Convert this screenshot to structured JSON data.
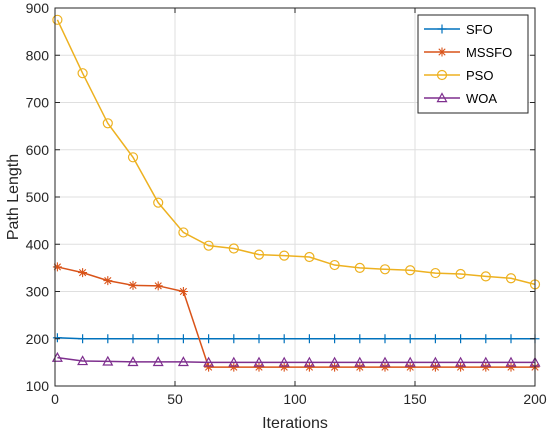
{
  "chart_data": {
    "type": "line",
    "title": "",
    "xlabel": "Iterations",
    "ylabel": "Path Length",
    "xlim": [
      0,
      200
    ],
    "ylim": [
      100,
      900
    ],
    "xticks": [
      0,
      50,
      100,
      150,
      200
    ],
    "yticks": [
      100,
      200,
      300,
      400,
      500,
      600,
      700,
      800,
      900
    ],
    "grid": true,
    "legend_position": "top-right",
    "series": [
      {
        "name": "SFO",
        "color": "#0072BD",
        "marker": "plus",
        "x": [
          1,
          11.5,
          22,
          32.5,
          43,
          53.5,
          64,
          74.5,
          85,
          95.5,
          106,
          116.5,
          127,
          137.5,
          148,
          158.5,
          169,
          179.5,
          190,
          200
        ],
        "y": [
          202,
          200,
          200,
          200,
          200,
          200,
          200,
          200,
          200,
          200,
          200,
          200,
          200,
          200,
          200,
          200,
          200,
          200,
          200,
          200
        ]
      },
      {
        "name": "MSSFO",
        "color": "#D95319",
        "marker": "asterisk",
        "x": [
          1,
          11.5,
          22,
          32.5,
          43,
          53.5,
          64,
          74.5,
          85,
          95.5,
          106,
          116.5,
          127,
          137.5,
          148,
          158.5,
          169,
          179.5,
          190,
          200
        ],
        "y": [
          352,
          340,
          323,
          313,
          312,
          300,
          140,
          140,
          140,
          140,
          140,
          140,
          140,
          140,
          140,
          140,
          140,
          140,
          140,
          140
        ]
      },
      {
        "name": "PSO",
        "color": "#EDB120",
        "marker": "circle",
        "x": [
          1,
          11.5,
          22,
          32.5,
          43,
          53.5,
          64,
          74.5,
          85,
          95.5,
          106,
          116.5,
          127,
          137.5,
          148,
          158.5,
          169,
          179.5,
          190,
          200
        ],
        "y": [
          875,
          762,
          656,
          584,
          488,
          425,
          397,
          391,
          378,
          376,
          373,
          356,
          350,
          347,
          345,
          339,
          337,
          332,
          328,
          315
        ]
      },
      {
        "name": "WOA",
        "color": "#7E2F8E",
        "marker": "triangle",
        "x": [
          1,
          11.5,
          22,
          32.5,
          43,
          53.5,
          64,
          74.5,
          85,
          95.5,
          106,
          116.5,
          127,
          137.5,
          148,
          158.5,
          169,
          179.5,
          190,
          200
        ],
        "y": [
          160,
          153,
          152,
          151,
          151,
          151,
          150,
          150,
          150,
          150,
          150,
          150,
          150,
          150,
          150,
          150,
          150,
          150,
          150,
          150
        ]
      }
    ]
  }
}
